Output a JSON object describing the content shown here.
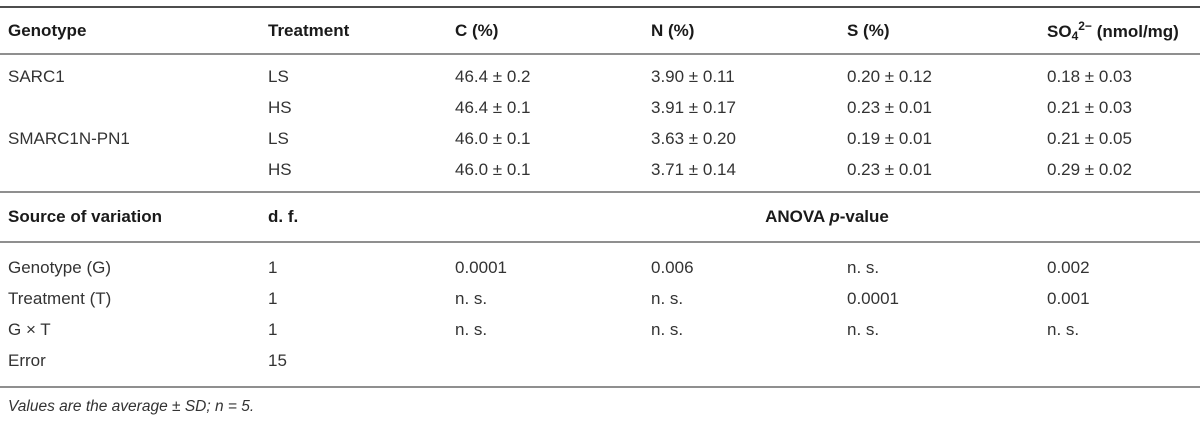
{
  "table": {
    "header": {
      "genotype": "Genotype",
      "treatment": "Treatment",
      "c": "C (%)",
      "n": "N (%)",
      "s": "S (%)",
      "so4_base": "SO",
      "so4_sub": "4",
      "so4_sup": "2−",
      "so4_unit": "(nmol/mg)"
    },
    "rows": [
      {
        "genotype": "SARC1",
        "treatment": "LS",
        "c": "46.4 ± 0.2",
        "n": "3.90 ± 0.11",
        "s": "0.20 ± 0.12",
        "so4": "0.18 ± 0.03"
      },
      {
        "genotype": "",
        "treatment": "HS",
        "c": "46.4 ± 0.1",
        "n": "3.91 ± 0.17",
        "s": "0.23 ± 0.01",
        "so4": "0.21 ± 0.03"
      },
      {
        "genotype": "SMARC1N-PN1",
        "treatment": "LS",
        "c": "46.0 ± 0.1",
        "n": "3.63 ± 0.20",
        "s": "0.19 ± 0.01",
        "so4": "0.21 ± 0.05"
      },
      {
        "genotype": "",
        "treatment": "HS",
        "c": "46.0 ± 0.1",
        "n": "3.71 ± 0.14",
        "s": "0.23 ± 0.01",
        "so4": "0.29 ± 0.02"
      }
    ],
    "anova": {
      "source_label": "Source of variation",
      "df_label": "d. f.",
      "header_prefix": "ANOVA ",
      "header_italic": "p",
      "header_suffix": "-value",
      "rows": [
        {
          "source": "Genotype (G)",
          "df": "1",
          "c": "0.0001",
          "n": "0.006",
          "s": "n. s.",
          "so4": "0.002"
        },
        {
          "source": "Treatment (T)",
          "df": "1",
          "c": "n. s.",
          "n": "n. s.",
          "s": "0.0001",
          "so4": "0.001"
        },
        {
          "source": "G × T",
          "df": "1",
          "c": "n. s.",
          "n": "n. s.",
          "s": "n. s.",
          "so4": "n. s."
        },
        {
          "source": "Error",
          "df": "15",
          "c": "",
          "n": "",
          "s": "",
          "so4": ""
        }
      ]
    },
    "footnote": "Values are the average ± SD; n = 5."
  },
  "colors": {
    "rule_top": "#4d4d4d",
    "rule": "#8f8f8f",
    "header_text": "#1a1a1a",
    "body_text": "#333333",
    "background": "#ffffff"
  }
}
